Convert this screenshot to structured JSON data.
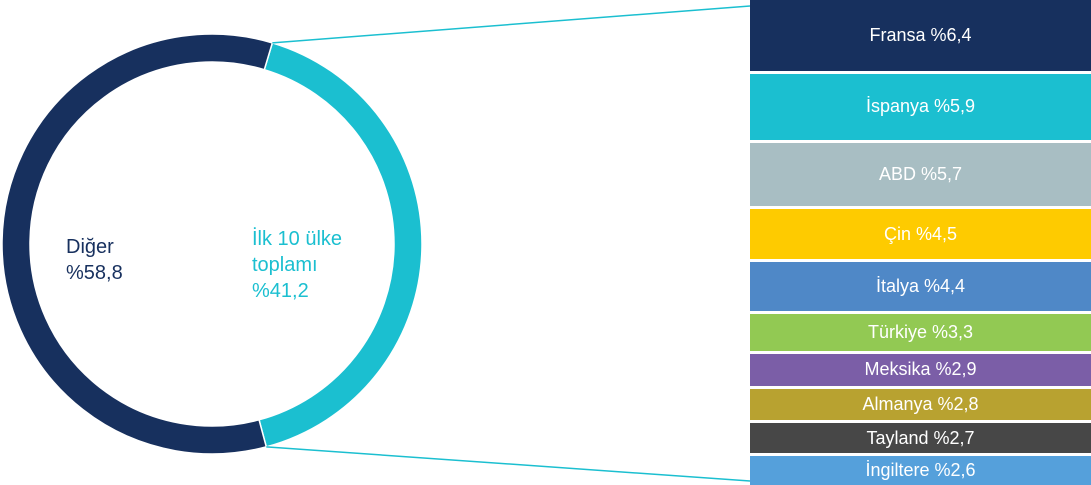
{
  "chart_data": [
    {
      "type": "pie",
      "variant": "donut",
      "slices": [
        {
          "name_line1": "İlk 10 ülke",
          "name_line2": "toplamı",
          "value_label": "%41,2",
          "value": 41.2,
          "color": "#1bbfd0"
        },
        {
          "name_line1": "Diğer",
          "value_label": "%58,8",
          "value": 58.8,
          "color": "#17305e"
        }
      ]
    },
    {
      "type": "bar",
      "variant": "stacked-single-column",
      "total_label": "İlk 10 ülke toplamı",
      "segments": [
        {
          "label": "Fransa %6,4",
          "value": 6.4,
          "color": "#17305e"
        },
        {
          "label": "İspanya %5,9",
          "value": 5.9,
          "color": "#1bbfd0"
        },
        {
          "label": "ABD %5,7",
          "value": 5.7,
          "color": "#a8bec3"
        },
        {
          "label": "Çin %4,5",
          "value": 4.5,
          "color": "#fecb00"
        },
        {
          "label": "İtalya %4,4",
          "value": 4.4,
          "color": "#4f88c7"
        },
        {
          "label": "Türkiye %3,3",
          "value": 3.3,
          "color": "#92c953"
        },
        {
          "label": "Meksika %2,9",
          "value": 2.9,
          "color": "#7b5ea7"
        },
        {
          "label": "Almanya %2,8",
          "value": 2.8,
          "color": "#b8a230"
        },
        {
          "label": "Tayland %2,7",
          "value": 2.7,
          "color": "#474747"
        },
        {
          "label": "İngiltere %2,6",
          "value": 2.6,
          "color": "#55a0db"
        }
      ]
    }
  ],
  "connector_color": "#1bbfd0"
}
